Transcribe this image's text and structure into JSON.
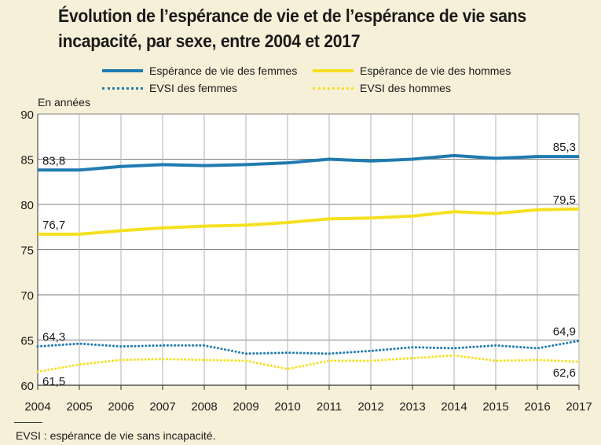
{
  "title": "Évolution de l’espérance de vie et de l’espérance de vie sans incapacité, par sexe, entre 2004 et 2017",
  "footnote": "EVSI : espérance de vie sans incapacité.",
  "chart_data": {
    "type": "line",
    "title": "Évolution de l’espérance de vie et de l’espérance de vie sans incapacité, par sexe, entre 2004 et 2017",
    "ylabel": "En années",
    "xlabel": "",
    "ylim": [
      60,
      90
    ],
    "yticks": [
      60,
      65,
      70,
      75,
      80,
      85,
      90
    ],
    "grid": true,
    "x": [
      2004,
      2005,
      2006,
      2007,
      2008,
      2009,
      2010,
      2011,
      2012,
      2013,
      2014,
      2015,
      2016,
      2017
    ],
    "series": [
      {
        "name": "Espérance de vie des femmes",
        "style": "solid",
        "color": "#1f7bb0",
        "values": [
          83.8,
          83.8,
          84.2,
          84.4,
          84.3,
          84.4,
          84.6,
          85.0,
          84.8,
          85.0,
          85.4,
          85.1,
          85.3,
          85.3
        ],
        "start_label": "83,8",
        "end_label": "85,3"
      },
      {
        "name": "Espérance de vie des hommes",
        "style": "solid",
        "color": "#f5e020",
        "values": [
          76.7,
          76.7,
          77.1,
          77.4,
          77.6,
          77.7,
          78.0,
          78.4,
          78.5,
          78.7,
          79.2,
          79.0,
          79.4,
          79.5
        ],
        "start_label": "76,7",
        "end_label": "79,5"
      },
      {
        "name": "EVSI des femmes",
        "style": "dotted",
        "color": "#1f7bb0",
        "values": [
          64.3,
          64.6,
          64.3,
          64.4,
          64.4,
          63.5,
          63.6,
          63.5,
          63.8,
          64.2,
          64.1,
          64.4,
          64.1,
          64.9
        ],
        "start_label": "64,3",
        "end_label": "64,9"
      },
      {
        "name": "EVSI des hommes",
        "style": "dotted",
        "color": "#f5e020",
        "values": [
          61.5,
          62.3,
          62.8,
          62.9,
          62.8,
          62.7,
          61.8,
          62.7,
          62.7,
          63.0,
          63.3,
          62.7,
          62.8,
          62.6
        ],
        "start_label": "61,5",
        "end_label": "62,6"
      }
    ]
  }
}
